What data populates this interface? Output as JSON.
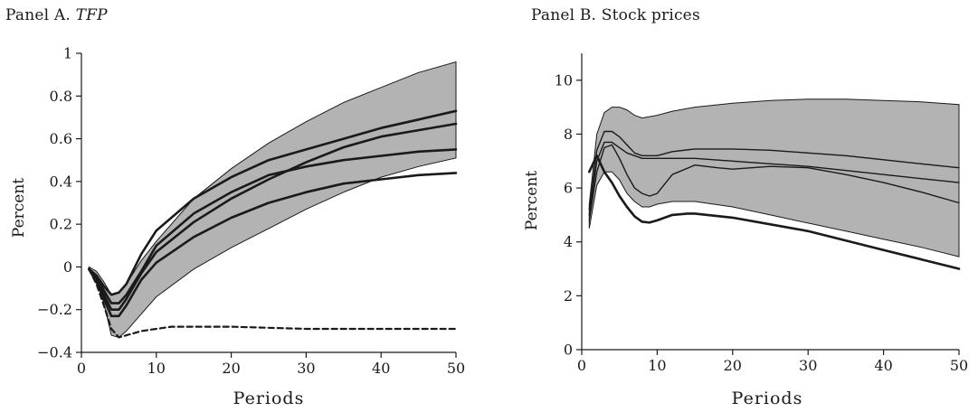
{
  "chart_data": [
    {
      "type": "line",
      "panel": "A",
      "title_prefix": "Panel A.",
      "title": "TFP",
      "xlabel": "Periods",
      "ylabel": "Percent",
      "xlim": [
        0,
        50
      ],
      "ylim": [
        -0.4,
        1
      ],
      "xticks": [
        0,
        10,
        20,
        30,
        40,
        50
      ],
      "yticks": [
        -0.4,
        -0.2,
        0,
        0.2,
        0.4,
        0.6,
        0.8,
        1
      ],
      "ytick_labels": [
        "−0.4",
        "−0.2",
        "0",
        "0.2",
        "0.4",
        "0.6",
        "0.8",
        "1"
      ],
      "band": {
        "x": [
          1,
          2,
          3,
          4,
          5,
          6,
          8,
          10,
          15,
          20,
          25,
          30,
          35,
          40,
          45,
          50
        ],
        "lower": [
          -0.01,
          -0.06,
          -0.17,
          -0.32,
          -0.33,
          -0.3,
          -0.22,
          -0.14,
          -0.01,
          0.09,
          0.18,
          0.27,
          0.35,
          0.42,
          0.47,
          0.51
        ],
        "upper": [
          0,
          -0.02,
          -0.07,
          -0.13,
          -0.12,
          -0.08,
          0.03,
          0.12,
          0.32,
          0.46,
          0.58,
          0.68,
          0.77,
          0.84,
          0.91,
          0.96
        ]
      },
      "series": [
        {
          "style": "solid",
          "x": [
            1,
            2,
            3,
            4,
            5,
            6,
            8,
            10,
            15,
            20,
            25,
            30,
            35,
            40,
            45,
            50
          ],
          "y": [
            -0.01,
            -0.04,
            -0.09,
            -0.13,
            -0.12,
            -0.08,
            0.06,
            0.17,
            0.32,
            0.42,
            0.5,
            0.55,
            0.6,
            0.65,
            0.69,
            0.73
          ]
        },
        {
          "style": "solid",
          "x": [
            1,
            2,
            3,
            4,
            5,
            6,
            8,
            10,
            15,
            20,
            25,
            30,
            35,
            40,
            45,
            50
          ],
          "y": [
            -0.01,
            -0.05,
            -0.11,
            -0.17,
            -0.17,
            -0.13,
            -0.02,
            0.1,
            0.25,
            0.35,
            0.43,
            0.47,
            0.5,
            0.52,
            0.54,
            0.55
          ]
        },
        {
          "style": "solid",
          "x": [
            1,
            2,
            3,
            4,
            5,
            6,
            8,
            10,
            15,
            20,
            25,
            30,
            35,
            40,
            45,
            50
          ],
          "y": [
            -0.01,
            -0.06,
            -0.13,
            -0.2,
            -0.2,
            -0.15,
            -0.03,
            0.07,
            0.21,
            0.32,
            0.41,
            0.49,
            0.56,
            0.61,
            0.64,
            0.67
          ]
        },
        {
          "style": "solid",
          "x": [
            1,
            2,
            3,
            4,
            5,
            6,
            8,
            10,
            15,
            20,
            25,
            30,
            35,
            40,
            45,
            50
          ],
          "y": [
            -0.01,
            -0.07,
            -0.15,
            -0.23,
            -0.23,
            -0.18,
            -0.06,
            0.02,
            0.14,
            0.23,
            0.3,
            0.35,
            0.39,
            0.41,
            0.43,
            0.44
          ]
        },
        {
          "style": "dashed",
          "x": [
            1,
            2,
            3,
            4,
            5,
            6,
            8,
            10,
            12,
            15,
            20,
            30,
            40,
            50
          ],
          "y": [
            -0.01,
            -0.08,
            -0.18,
            -0.29,
            -0.33,
            -0.32,
            -0.3,
            -0.29,
            -0.28,
            -0.28,
            -0.28,
            -0.29,
            -0.29,
            -0.29
          ]
        }
      ]
    },
    {
      "type": "line",
      "panel": "B",
      "title_prefix": "Panel B.",
      "title": "Stock prices",
      "xlabel": "Periods",
      "ylabel": "Percent",
      "xlim": [
        0,
        50
      ],
      "ylim": [
        0,
        11
      ],
      "xticks": [
        0,
        10,
        20,
        30,
        40,
        50
      ],
      "yticks": [
        0,
        2,
        4,
        6,
        8,
        10
      ],
      "ytick_labels": [
        "0",
        "2",
        "4",
        "6",
        "8",
        "10"
      ],
      "band": {
        "x": [
          1,
          2,
          3,
          4,
          5,
          6,
          7,
          8,
          9,
          10,
          12,
          15,
          20,
          25,
          30,
          35,
          40,
          45,
          50
        ],
        "lower": [
          4.5,
          6.1,
          6.6,
          6.6,
          6.3,
          5.8,
          5.5,
          5.3,
          5.3,
          5.4,
          5.5,
          5.5,
          5.3,
          5.0,
          4.7,
          4.4,
          4.1,
          3.8,
          3.45
        ],
        "upper": [
          5.4,
          8.0,
          8.8,
          9.0,
          9.0,
          8.9,
          8.7,
          8.6,
          8.65,
          8.7,
          8.85,
          9.0,
          9.15,
          9.25,
          9.3,
          9.3,
          9.25,
          9.2,
          9.1
        ]
      },
      "series": [
        {
          "style": "thin",
          "x": [
            1,
            2,
            3,
            4,
            5,
            6,
            7,
            8,
            9,
            10,
            12,
            15,
            20,
            25,
            30,
            35,
            40,
            45,
            50
          ],
          "y": [
            5.2,
            7.4,
            8.1,
            8.1,
            7.9,
            7.6,
            7.3,
            7.2,
            7.2,
            7.2,
            7.35,
            7.45,
            7.45,
            7.4,
            7.3,
            7.2,
            7.05,
            6.9,
            6.75
          ]
        },
        {
          "style": "thin",
          "x": [
            1,
            2,
            3,
            4,
            5,
            6,
            7,
            8,
            9,
            10,
            12,
            15,
            20,
            25,
            30,
            35,
            40,
            45,
            50
          ],
          "y": [
            5.0,
            7.0,
            7.7,
            7.7,
            7.5,
            7.3,
            7.2,
            7.1,
            7.1,
            7.1,
            7.1,
            7.1,
            7.0,
            6.9,
            6.8,
            6.65,
            6.5,
            6.35,
            6.2
          ]
        },
        {
          "style": "thin",
          "x": [
            1,
            2,
            3,
            4,
            5,
            6,
            7,
            8,
            9,
            10,
            12,
            15,
            18,
            20,
            25,
            30,
            35,
            40,
            45,
            50
          ],
          "y": [
            4.8,
            6.6,
            7.5,
            7.6,
            7.1,
            6.5,
            6.0,
            5.8,
            5.7,
            5.8,
            6.5,
            6.85,
            6.75,
            6.7,
            6.8,
            6.75,
            6.5,
            6.2,
            5.85,
            5.45
          ]
        },
        {
          "style": "thick",
          "x": [
            1,
            2,
            3,
            4,
            5,
            6,
            7,
            8,
            9,
            10,
            12,
            14,
            15,
            20,
            25,
            30,
            35,
            40,
            45,
            50
          ],
          "y": [
            6.6,
            7.2,
            6.6,
            6.2,
            5.7,
            5.3,
            4.95,
            4.75,
            4.72,
            4.8,
            5.0,
            5.05,
            5.05,
            4.9,
            4.65,
            4.4,
            4.05,
            3.7,
            3.35,
            3.0
          ]
        }
      ]
    }
  ]
}
